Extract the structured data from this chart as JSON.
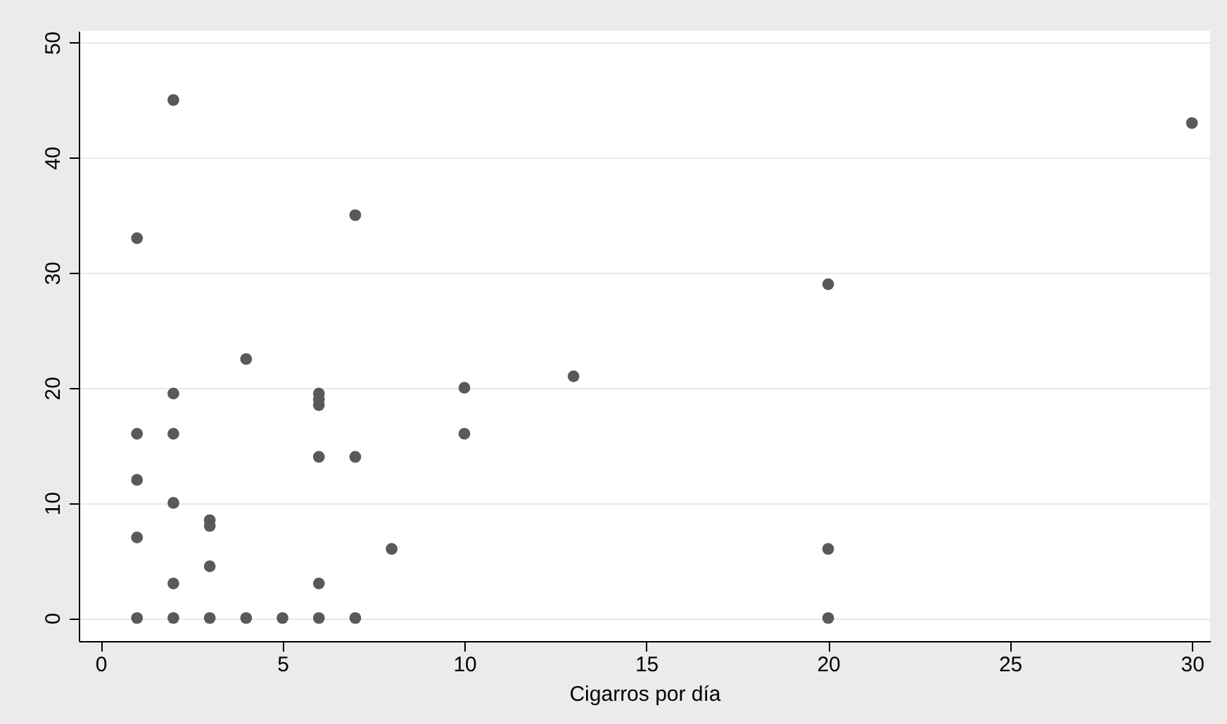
{
  "chart_data": {
    "type": "scatter",
    "xlabel": "Cigarros por día",
    "x": [
      1,
      1,
      1,
      1,
      1,
      2,
      2,
      2,
      2,
      2,
      2,
      3,
      3,
      3,
      3,
      4,
      4,
      5,
      6,
      6,
      6,
      6,
      6,
      6,
      7,
      7,
      7,
      8,
      10,
      10,
      13,
      20,
      20,
      20,
      30
    ],
    "series": [
      {
        "color": "#595959",
        "values": [
          33,
          16,
          12,
          7,
          0,
          45,
          19.5,
          16,
          10,
          3,
          0,
          8.5,
          8,
          4.5,
          0,
          22.5,
          0,
          0,
          19.5,
          19,
          18.5,
          14,
          3,
          0,
          35,
          14,
          0,
          6,
          20,
          16,
          21,
          29,
          6,
          0,
          43
        ]
      }
    ],
    "xlim": [
      -0.6,
      30.5
    ],
    "ylim": [
      -2,
      51
    ],
    "xticks": [
      0,
      5,
      10,
      15,
      20,
      25,
      30
    ],
    "yticks": [
      0,
      10,
      20,
      30,
      40,
      50
    ],
    "grid": "y",
    "marker": "circle",
    "legend": false
  }
}
